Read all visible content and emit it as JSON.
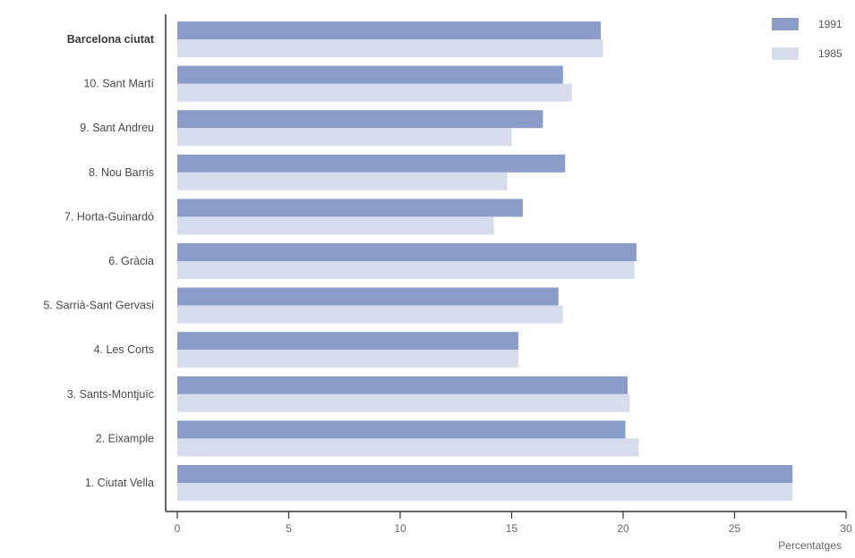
{
  "chart_data": {
    "type": "bar",
    "orientation": "horizontal",
    "title": "",
    "xlabel": "Percentatges",
    "ylabel": "",
    "xlim": [
      0,
      30
    ],
    "xticks": [
      0,
      5,
      10,
      15,
      20,
      25,
      30
    ],
    "categories": [
      "Barcelona ciutat",
      "10. Sant Martí",
      "9. Sant Andreu",
      "8. Nou Barris",
      "7. Horta-Guinardó",
      "6. Gràcia",
      "5. Sarrià-Sant Gervasi",
      "4. Les Corts",
      "3. Sants-Montjuïc",
      "2. Eixample",
      "1. Ciutat Vella"
    ],
    "bold_categories": [
      "Barcelona ciutat"
    ],
    "series": [
      {
        "name": "1991",
        "color": "#8a9cc8",
        "values": [
          19.0,
          17.3,
          16.4,
          17.4,
          15.5,
          20.6,
          17.1,
          15.3,
          20.2,
          20.1,
          27.6
        ]
      },
      {
        "name": "1985",
        "color": "#d6dceb",
        "values": [
          19.1,
          17.7,
          15.0,
          14.8,
          14.2,
          20.5,
          17.3,
          15.3,
          20.3,
          20.7,
          27.6
        ]
      }
    ],
    "legend": {
      "position": "top-right"
    },
    "grid": false
  }
}
